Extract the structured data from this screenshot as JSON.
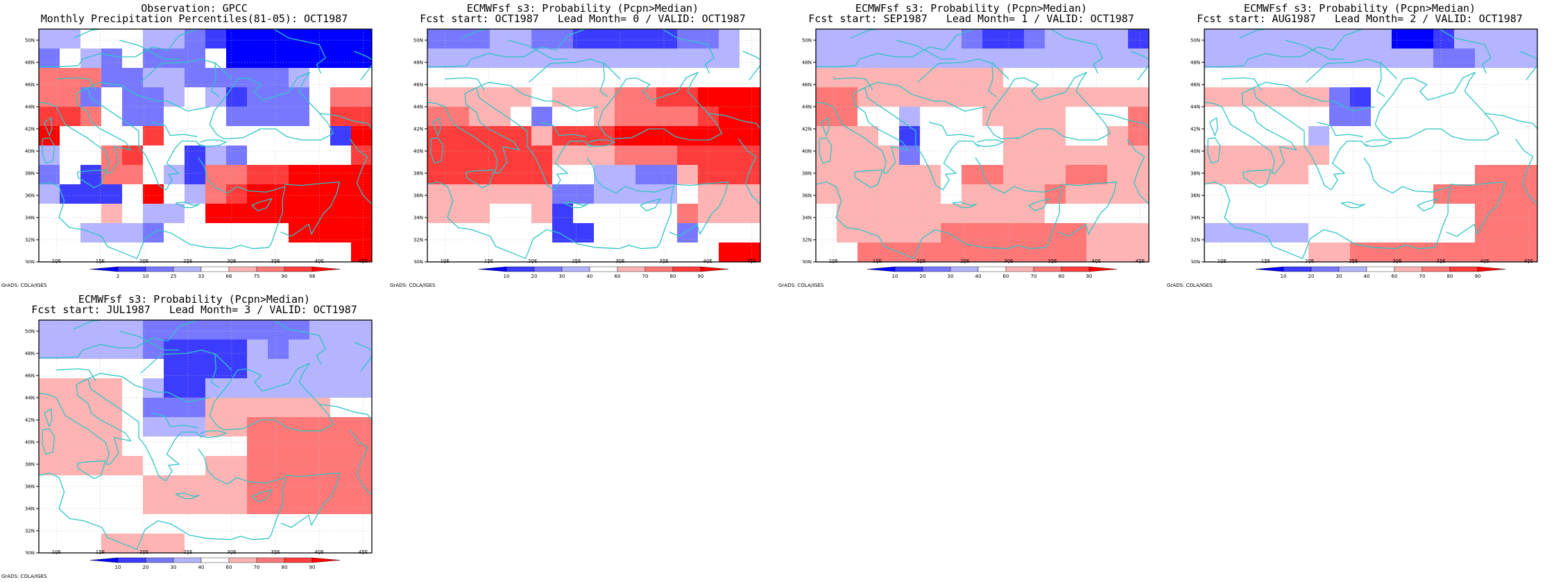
{
  "colors": {
    "c1": "#0000ff",
    "c2": "#3c3cff",
    "c3": "#7878ff",
    "c4": "#b4b4ff",
    "c5": "#ffffff",
    "c6": "#ffb4b4",
    "c7": "#ff7878",
    "c8": "#ff3c3c",
    "c9": "#ff0000",
    "coast": "#2ec4c4"
  },
  "map": {
    "lon_ticks": [
      "10E",
      "15E",
      "20E",
      "25E",
      "30E",
      "35E",
      "40E",
      "45E"
    ],
    "lat_ticks": [
      "30N",
      "32N",
      "34N",
      "36N",
      "38N",
      "40N",
      "42N",
      "44N",
      "46N",
      "48N",
      "50N"
    ]
  },
  "panels": [
    {
      "title1": "Observation: GPCC",
      "title2": "Monthly Precipitation Percentiles(81-05): OCT1987",
      "grads_label": "GrADS: COLA/IGES",
      "colorbar_labels": [
        "2",
        "10",
        "25",
        "33",
        "66",
        "75",
        "90",
        "98"
      ],
      "grid": [
        "4455544321111111",
        "3543533351111111",
        "7773344333334555",
        "7735334542333577",
        "8875335553333588",
        "9555585555555529",
        "4557855243555558",
        "3527754277889999",
        "4222595478999999",
        "5556544599999999",
        "5544435555559999",
        "5555555555555559"
      ]
    },
    {
      "title1": "ECMWFsf s3: Probability (Pcpn>Median)",
      "title2": "Fcst start: OCT1987   Lead Month= 0 / VALID: OCT1987",
      "grads_label": "GrADS: COLA/IGES",
      "colorbar_labels": [
        "10",
        "20",
        "30",
        "40",
        "60",
        "70",
        "80",
        "90"
      ],
      "grid": [
        "3334433222223345",
        "4444444444444445",
        "5555555555555555",
        "6666656667788999",
        "7766535567777899",
        "8888868889999999",
        "8888886667778888",
        "8888885544336888",
        "6666663344445666",
        "6665562555557666",
        "5555552255553555",
        "5555555555555599"
      ]
    },
    {
      "title1": "ECMWFsf s3: Probability (Pcpn>Median)",
      "title2": "Fcst start: SEP1987   Lead Month= 1 / VALID: OCT1987",
      "grads_label": "GrADS: COLA/IGES",
      "colorbar_labels": [
        "10",
        "20",
        "30",
        "40",
        "60",
        "70",
        "80",
        "90"
      ],
      "grid": [
        "4444444322344442",
        "4444444444444444",
        "6666666665555555",
        "7766666666666666",
        "7755455566665557",
        "6665255556665567",
        "6666355556666666",
        "6666665776667766",
        "6666665666676666",
        "5666666666655555",
        "5666667777777666",
        "5577777777777666"
      ]
    },
    {
      "title1": "ECMWFsf s3: Probability (Pcpn>Median)",
      "title2": "Fcst start: AUG1987   Lead Month= 2 / VALID: OCT1987",
      "grads_label": "GrADS: COLA/IGES",
      "colorbar_labels": [
        "10",
        "20",
        "30",
        "40",
        "60",
        "70",
        "80",
        "90"
      ],
      "grid": [
        "4444444441124444",
        "4444444444433444",
        "5555555555555555",
        "6666663255555555",
        "5555553355555555",
        "5555545555555555",
        "6666665555555555",
        "6666655555555777",
        "5555555555577777",
        "5555555555555777",
        "4444455555555777",
        "5555566777777777"
      ]
    },
    {
      "title1": "ECMWFsf s3: Probability (Pcpn>Median)",
      "title2": "Fcst start: JUL1987   Lead Month= 3 / VALID: OCT1987",
      "grads_label": "GrADS: COLA/IGES",
      "colorbar_labels": [
        "10",
        "20",
        "30",
        "40",
        "60",
        "70",
        "80",
        "90"
      ],
      "grid": [
        "4444433333333444",
        "4444432222434444",
        "5555552222444444",
        "6666542244444444",
        "6666533366666655",
        "6666544466777777",
        "6666555555777777",
        "6666655566777777",
        "5555566666777777",
        "5555566666777777",
        "5555555555555555",
        "5556666555555555"
      ]
    }
  ]
}
